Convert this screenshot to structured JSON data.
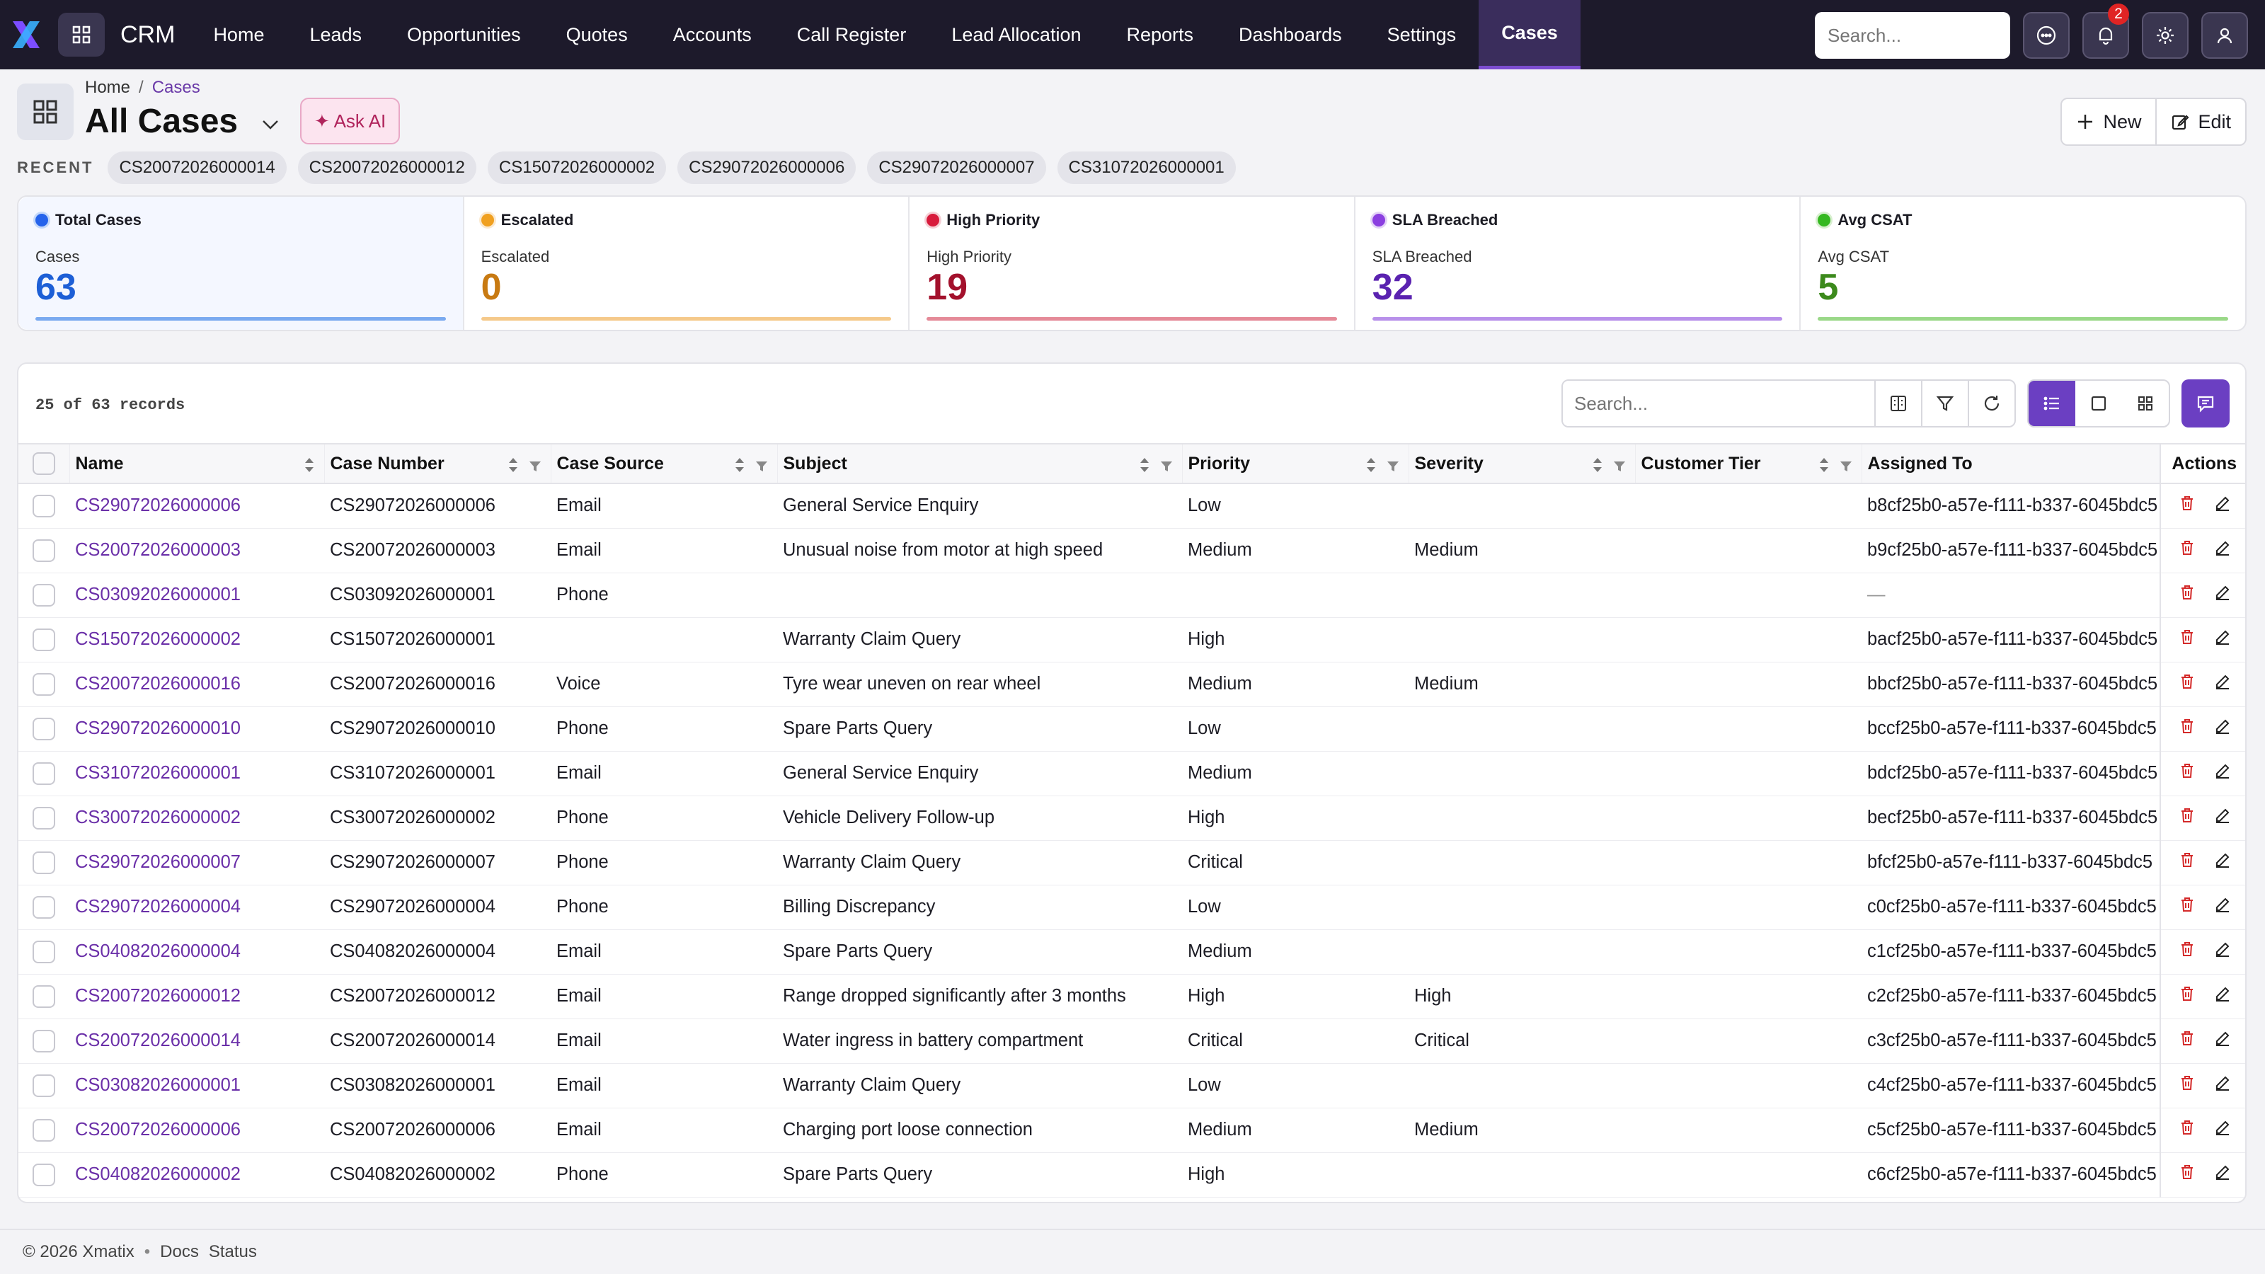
{
  "app": {
    "brand": "CRM",
    "logo": "x-logo"
  },
  "nav": {
    "items": [
      "Home",
      "Leads",
      "Opportunities",
      "Quotes",
      "Accounts",
      "Call Register",
      "Lead Allocation",
      "Reports",
      "Dashboards",
      "Settings",
      "Cases"
    ],
    "active": "Cases",
    "search_placeholder": "Search...",
    "notification_count": "2"
  },
  "header": {
    "breadcrumb": [
      "Home",
      "Cases"
    ],
    "title": "All Cases",
    "ask_ai": "✦ Ask AI",
    "new_label": "New",
    "edit_label": "Edit"
  },
  "recent": {
    "label": "RECENT",
    "items": [
      "CS20072026000014",
      "CS20072026000012",
      "CS15072026000002",
      "CS29072026000006",
      "CS29072026000007",
      "CS31072026000001"
    ]
  },
  "stats": [
    {
      "label": "Total Cases",
      "sub": "Cases",
      "value": "63",
      "color": "#1d5fd6",
      "dot": "#2563eb",
      "bar": "#7aaaf0"
    },
    {
      "label": "Escalated",
      "sub": "Escalated",
      "value": "0",
      "color": "#c87a12",
      "dot": "#f0a020",
      "bar": "#f5c98a"
    },
    {
      "label": "High Priority",
      "sub": "High Priority",
      "value": "19",
      "color": "#a3112c",
      "dot": "#d81b3c",
      "bar": "#e58a98"
    },
    {
      "label": "SLA Breached",
      "sub": "SLA Breached",
      "value": "32",
      "color": "#5a22b0",
      "dot": "#8b3fe0",
      "bar": "#b890ea"
    },
    {
      "label": "Avg CSAT",
      "sub": "Avg CSAT",
      "value": "5",
      "color": "#3c8a1c",
      "dot": "#34b820",
      "bar": "#9ad888"
    }
  ],
  "table": {
    "records_text": "25 of 63 records",
    "search_placeholder": "Search...",
    "columns": [
      "Name",
      "Case Number",
      "Case Source",
      "Subject",
      "Priority",
      "Severity",
      "Customer Tier",
      "Assigned To",
      "Actions"
    ],
    "rows": [
      [
        "CS29072026000006",
        "CS29072026000006",
        "Email",
        "General Service Enquiry",
        "Low",
        "",
        "",
        "b8cf25b0-a57e-f111-b337-6045bdc5"
      ],
      [
        "CS20072026000003",
        "CS20072026000003",
        "Email",
        "Unusual noise from motor at high speed",
        "Medium",
        "Medium",
        "",
        "b9cf25b0-a57e-f111-b337-6045bdc5"
      ],
      [
        "CS03092026000001",
        "CS03092026000001",
        "Phone",
        "",
        "",
        "",
        "",
        "—"
      ],
      [
        "CS15072026000002",
        "CS15072026000001",
        "",
        "Warranty Claim Query",
        "High",
        "",
        "",
        "bacf25b0-a57e-f111-b337-6045bdc5"
      ],
      [
        "CS20072026000016",
        "CS20072026000016",
        "Voice",
        "Tyre wear uneven on rear wheel",
        "Medium",
        "Medium",
        "",
        "bbcf25b0-a57e-f111-b337-6045bdc5"
      ],
      [
        "CS29072026000010",
        "CS29072026000010",
        "Phone",
        "Spare Parts Query",
        "Low",
        "",
        "",
        "bccf25b0-a57e-f111-b337-6045bdc5"
      ],
      [
        "CS31072026000001",
        "CS31072026000001",
        "Email",
        "General Service Enquiry",
        "Medium",
        "",
        "",
        "bdcf25b0-a57e-f111-b337-6045bdc5"
      ],
      [
        "CS30072026000002",
        "CS30072026000002",
        "Phone",
        "Vehicle Delivery Follow-up",
        "High",
        "",
        "",
        "becf25b0-a57e-f111-b337-6045bdc5"
      ],
      [
        "CS29072026000007",
        "CS29072026000007",
        "Phone",
        "Warranty Claim Query",
        "Critical",
        "",
        "",
        "bfcf25b0-a57e-f111-b337-6045bdc5"
      ],
      [
        "CS29072026000004",
        "CS29072026000004",
        "Phone",
        "Billing Discrepancy",
        "Low",
        "",
        "",
        "c0cf25b0-a57e-f111-b337-6045bdc5"
      ],
      [
        "CS04082026000004",
        "CS04082026000004",
        "Email",
        "Spare Parts Query",
        "Medium",
        "",
        "",
        "c1cf25b0-a57e-f111-b337-6045bdc5"
      ],
      [
        "CS20072026000012",
        "CS20072026000012",
        "Email",
        "Range dropped significantly after 3 months",
        "High",
        "High",
        "",
        "c2cf25b0-a57e-f111-b337-6045bdc5"
      ],
      [
        "CS20072026000014",
        "CS20072026000014",
        "Email",
        "Water ingress in battery compartment",
        "Critical",
        "Critical",
        "",
        "c3cf25b0-a57e-f111-b337-6045bdc5"
      ],
      [
        "CS03082026000001",
        "CS03082026000001",
        "Email",
        "Warranty Claim Query",
        "Low",
        "",
        "",
        "c4cf25b0-a57e-f111-b337-6045bdc5"
      ],
      [
        "CS20072026000006",
        "CS20072026000006",
        "Email",
        "Charging port loose connection",
        "Medium",
        "Medium",
        "",
        "c5cf25b0-a57e-f111-b337-6045bdc5"
      ],
      [
        "CS04082026000002",
        "CS04082026000002",
        "Phone",
        "Spare Parts Query",
        "High",
        "",
        "",
        "c6cf25b0-a57e-f111-b337-6045bdc5"
      ]
    ]
  },
  "footer": {
    "copyright": "© 2026 Xmatix",
    "docs": "Docs",
    "status": "Status"
  }
}
